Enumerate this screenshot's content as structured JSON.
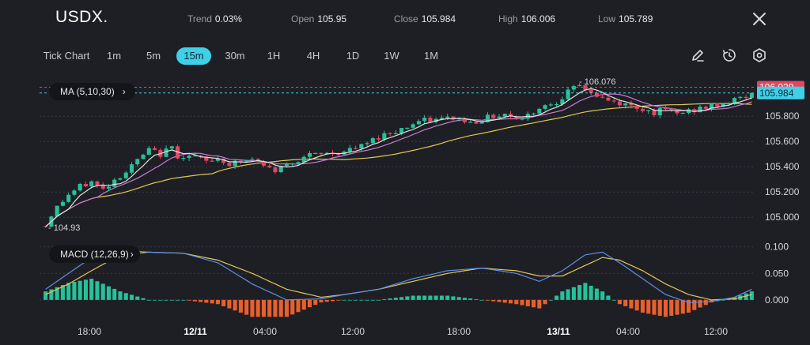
{
  "header": {
    "symbol": "USDX.",
    "trend_label": "Trend",
    "trend_value": "0.03%",
    "open_label": "Open",
    "open_value": "105.95",
    "close_label": "Close",
    "close_value": "105.984",
    "high_label": "High",
    "high_value": "106.006",
    "low_label": "Low",
    "low_value": "105.789"
  },
  "toolbar": {
    "tick_chart": "Tick Chart",
    "timeframes": [
      "1m",
      "5m",
      "15m",
      "30m",
      "1H",
      "4H",
      "1D",
      "1W",
      "1M"
    ],
    "active_timeframe": "15m",
    "tools": [
      "draw-icon",
      "timer-icon",
      "settings-icon"
    ]
  },
  "indicators": {
    "ma_label": "MA (5,10,30)",
    "macd_label": "MACD (12,26,9)"
  },
  "colors": {
    "up": "#26c19a",
    "down": "#e04763",
    "ma5": "#e0e0e0",
    "ma10": "#c879d6",
    "ma30": "#e2c65a",
    "dif": "#5b8fe8",
    "dea": "#e2c65a",
    "hist_pos": "#26c19a",
    "hist_neg": "#e8602c",
    "high_line": "#e04763",
    "last_line": "#3fd0e9"
  },
  "chart_data": [
    {
      "type": "candlestick",
      "title": "USDX.",
      "ylim": [
        104.87,
        106.12
      ],
      "y_ticks": [
        "105.000",
        "105.200",
        "105.400",
        "105.600",
        "105.800"
      ],
      "x_ticks": [
        "18:00",
        "12/11",
        "04:00",
        "12:00",
        "18:00",
        "13/11",
        "04:00",
        "12:00"
      ],
      "price_path": [
        [
          0,
          104.93
        ],
        [
          1,
          105.02
        ],
        [
          2,
          105.08
        ],
        [
          4,
          105.18
        ],
        [
          6,
          105.24
        ],
        [
          8,
          105.28
        ],
        [
          10,
          105.22
        ],
        [
          12,
          105.3
        ],
        [
          14,
          105.36
        ],
        [
          16,
          105.45
        ],
        [
          18,
          105.53
        ],
        [
          20,
          105.5
        ],
        [
          22,
          105.55
        ],
        [
          23,
          105.49
        ],
        [
          26,
          105.48
        ],
        [
          28,
          105.44
        ],
        [
          30,
          105.47
        ],
        [
          32,
          105.42
        ],
        [
          34,
          105.44
        ],
        [
          36,
          105.46
        ],
        [
          38,
          105.4
        ],
        [
          40,
          105.37
        ],
        [
          42,
          105.42
        ],
        [
          45,
          105.48
        ],
        [
          48,
          105.5
        ],
        [
          52,
          105.52
        ],
        [
          55,
          105.56
        ],
        [
          58,
          105.64
        ],
        [
          62,
          105.7
        ],
        [
          65,
          105.76
        ],
        [
          68,
          105.77
        ],
        [
          71,
          105.79
        ],
        [
          74,
          105.75
        ],
        [
          77,
          105.79
        ],
        [
          80,
          105.82
        ],
        [
          83,
          105.78
        ],
        [
          86,
          105.87
        ],
        [
          89,
          105.92
        ],
        [
          91,
          105.99
        ],
        [
          93,
          106.04
        ],
        [
          94,
          106.02
        ],
        [
          95,
          105.99
        ],
        [
          96,
          105.96
        ],
        [
          98,
          105.92
        ],
        [
          100,
          105.9
        ],
        [
          102,
          105.88
        ],
        [
          104,
          105.86
        ],
        [
          106,
          105.83
        ],
        [
          108,
          105.85
        ],
        [
          110,
          105.82
        ],
        [
          112,
          105.84
        ],
        [
          114,
          105.86
        ],
        [
          116,
          105.88
        ],
        [
          118,
          105.9
        ],
        [
          120,
          105.93
        ],
        [
          122,
          105.96
        ],
        [
          123,
          105.984
        ]
      ],
      "annotations": {
        "high": "106.076",
        "low": "104.93",
        "high_line": "106.029",
        "last": "105.984"
      }
    },
    {
      "type": "line",
      "title": "MACD (12,26,9)",
      "ylim": [
        -0.03,
        0.11
      ],
      "y_ticks": [
        "0.000",
        "0.050",
        "0.100"
      ],
      "dif_path": [
        [
          0,
          0.02
        ],
        [
          4,
          0.05
        ],
        [
          8,
          0.08
        ],
        [
          13,
          0.095
        ],
        [
          18,
          0.09
        ],
        [
          24,
          0.088
        ],
        [
          30,
          0.07
        ],
        [
          36,
          0.03
        ],
        [
          42,
          0.0
        ],
        [
          48,
          0.002
        ],
        [
          52,
          0.01
        ],
        [
          58,
          0.02
        ],
        [
          64,
          0.04
        ],
        [
          70,
          0.055
        ],
        [
          76,
          0.06
        ],
        [
          82,
          0.05
        ],
        [
          86,
          0.035
        ],
        [
          90,
          0.055
        ],
        [
          94,
          0.085
        ],
        [
          97,
          0.09
        ],
        [
          100,
          0.07
        ],
        [
          104,
          0.04
        ],
        [
          108,
          0.01
        ],
        [
          112,
          -0.005
        ],
        [
          116,
          -0.003
        ],
        [
          120,
          0.005
        ],
        [
          123,
          0.02
        ]
      ],
      "dea_path": [
        [
          0,
          0.01
        ],
        [
          4,
          0.03
        ],
        [
          8,
          0.055
        ],
        [
          13,
          0.085
        ],
        [
          18,
          0.09
        ],
        [
          24,
          0.088
        ],
        [
          30,
          0.075
        ],
        [
          36,
          0.05
        ],
        [
          42,
          0.02
        ],
        [
          48,
          0.005
        ],
        [
          52,
          0.01
        ],
        [
          58,
          0.02
        ],
        [
          64,
          0.035
        ],
        [
          70,
          0.05
        ],
        [
          76,
          0.06
        ],
        [
          82,
          0.055
        ],
        [
          86,
          0.045
        ],
        [
          90,
          0.045
        ],
        [
          94,
          0.065
        ],
        [
          97,
          0.08
        ],
        [
          100,
          0.075
        ],
        [
          104,
          0.055
        ],
        [
          108,
          0.03
        ],
        [
          112,
          0.01
        ],
        [
          116,
          0.0
        ],
        [
          120,
          0.002
        ],
        [
          123,
          0.01
        ]
      ]
    }
  ]
}
